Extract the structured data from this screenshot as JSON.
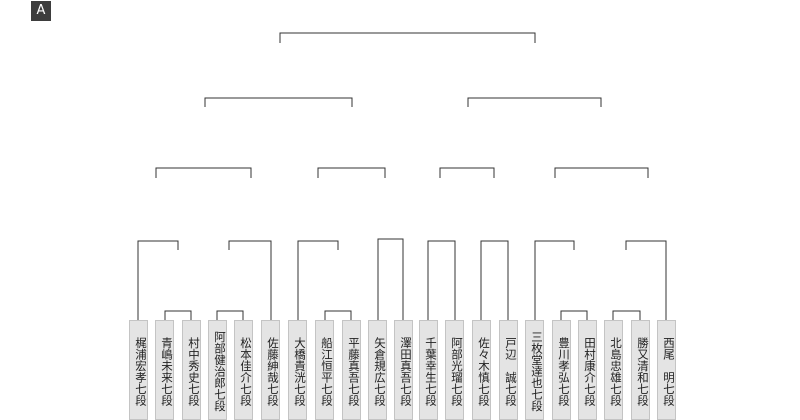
{
  "tag": "A",
  "players": [
    "梶浦宏孝七段",
    "青嶋未来七段",
    "村中秀史七段",
    "阿部健治郎七段",
    "松本佳介七段",
    "佐藤紳哉七段",
    "大橋貴洸七段",
    "船江恒平七段",
    "平藤真吾七段",
    "矢倉規広七段",
    "澤田真吾七段",
    "千葉幸生七段",
    "阿部光瑠七段",
    "佐々木慎七段",
    "戸辺　誠七段",
    "三枚堂達也七段",
    "豊川孝弘七段",
    "田村康介七段",
    "北島忠雄七段",
    "勝又清和七段",
    "西尾　明七段"
  ]
}
